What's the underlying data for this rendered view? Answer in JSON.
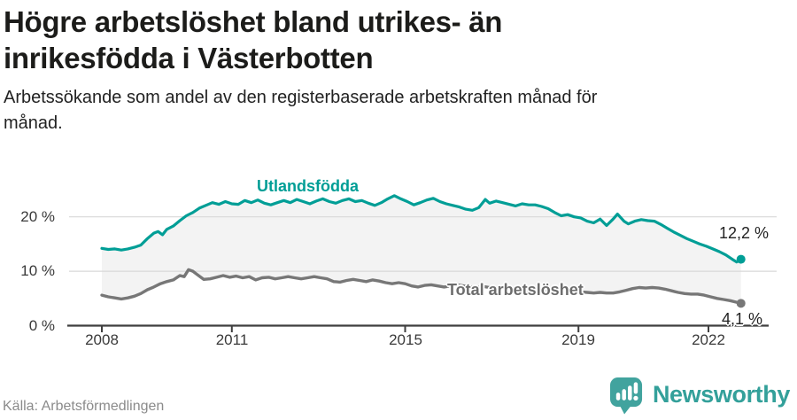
{
  "header": {
    "title": "Högre arbetslöshet bland utrikes- än inrikesfödda i Västerbotten",
    "subtitle": "Arbetssökande som andel av den registerbaserade arbetskraften månad för månad."
  },
  "chart_data": {
    "type": "line",
    "title": "Högre arbetslöshet bland utrikes- än inrikesfödda i Västerbotten",
    "subtitle": "Arbetssökande som andel av den registerbaserade arbetskraften månad för månad.",
    "unit": "%",
    "grid": "horizontal",
    "legend_position": "inline-labels",
    "x_range": [
      2008,
      2022.75
    ],
    "y_range": [
      0,
      26
    ],
    "x_ticks": [
      2008,
      2011,
      2015,
      2019,
      2022
    ],
    "x_tick_labels": [
      "2008",
      "2011",
      "2015",
      "2019",
      "2022"
    ],
    "y_ticks": [
      0,
      10,
      20
    ],
    "y_tick_labels": [
      "0 %",
      "10 %",
      "20 %"
    ],
    "band_fill": "#f3f3f3",
    "series": [
      {
        "name": "Utlandsfödda",
        "color": "#009e96",
        "end_label": "12,2 %",
        "end_value": 12.2,
        "points": [
          [
            2008.0,
            14.2
          ],
          [
            2008.15,
            14.0
          ],
          [
            2008.3,
            14.1
          ],
          [
            2008.45,
            13.9
          ],
          [
            2008.6,
            14.1
          ],
          [
            2008.75,
            14.4
          ],
          [
            2008.9,
            14.8
          ],
          [
            2009.05,
            16.0
          ],
          [
            2009.2,
            17.0
          ],
          [
            2009.3,
            17.3
          ],
          [
            2009.4,
            16.7
          ],
          [
            2009.5,
            17.7
          ],
          [
            2009.65,
            18.3
          ],
          [
            2009.8,
            19.3
          ],
          [
            2009.95,
            20.2
          ],
          [
            2010.1,
            20.8
          ],
          [
            2010.25,
            21.6
          ],
          [
            2010.4,
            22.1
          ],
          [
            2010.55,
            22.6
          ],
          [
            2010.7,
            22.3
          ],
          [
            2010.85,
            22.8
          ],
          [
            2011.0,
            22.4
          ],
          [
            2011.15,
            22.3
          ],
          [
            2011.3,
            23.0
          ],
          [
            2011.45,
            22.6
          ],
          [
            2011.6,
            23.1
          ],
          [
            2011.75,
            22.5
          ],
          [
            2011.9,
            22.2
          ],
          [
            2012.05,
            22.6
          ],
          [
            2012.2,
            23.0
          ],
          [
            2012.35,
            22.6
          ],
          [
            2012.5,
            23.2
          ],
          [
            2012.65,
            22.8
          ],
          [
            2012.8,
            22.4
          ],
          [
            2012.95,
            22.9
          ],
          [
            2013.1,
            23.3
          ],
          [
            2013.25,
            22.8
          ],
          [
            2013.4,
            22.5
          ],
          [
            2013.55,
            23.0
          ],
          [
            2013.7,
            23.3
          ],
          [
            2013.85,
            22.8
          ],
          [
            2014.0,
            23.0
          ],
          [
            2014.15,
            22.5
          ],
          [
            2014.3,
            22.1
          ],
          [
            2014.45,
            22.6
          ],
          [
            2014.6,
            23.3
          ],
          [
            2014.75,
            23.9
          ],
          [
            2014.9,
            23.3
          ],
          [
            2015.05,
            22.8
          ],
          [
            2015.2,
            22.2
          ],
          [
            2015.35,
            22.6
          ],
          [
            2015.5,
            23.1
          ],
          [
            2015.65,
            23.4
          ],
          [
            2015.8,
            22.8
          ],
          [
            2015.95,
            22.4
          ],
          [
            2016.1,
            22.1
          ],
          [
            2016.25,
            21.8
          ],
          [
            2016.4,
            21.4
          ],
          [
            2016.55,
            21.2
          ],
          [
            2016.7,
            21.7
          ],
          [
            2016.85,
            23.2
          ],
          [
            2016.95,
            22.5
          ],
          [
            2017.1,
            22.9
          ],
          [
            2017.25,
            22.6
          ],
          [
            2017.4,
            22.3
          ],
          [
            2017.55,
            22.0
          ],
          [
            2017.7,
            22.4
          ],
          [
            2017.85,
            22.2
          ],
          [
            2018.0,
            22.2
          ],
          [
            2018.15,
            21.9
          ],
          [
            2018.3,
            21.5
          ],
          [
            2018.45,
            20.8
          ],
          [
            2018.6,
            20.2
          ],
          [
            2018.75,
            20.4
          ],
          [
            2018.9,
            20.0
          ],
          [
            2019.05,
            19.8
          ],
          [
            2019.2,
            19.2
          ],
          [
            2019.35,
            18.9
          ],
          [
            2019.5,
            19.6
          ],
          [
            2019.65,
            18.4
          ],
          [
            2019.8,
            19.6
          ],
          [
            2019.9,
            20.5
          ],
          [
            2020.05,
            19.2
          ],
          [
            2020.15,
            18.7
          ],
          [
            2020.3,
            19.2
          ],
          [
            2020.45,
            19.5
          ],
          [
            2020.6,
            19.3
          ],
          [
            2020.75,
            19.2
          ],
          [
            2020.9,
            18.6
          ],
          [
            2021.05,
            17.9
          ],
          [
            2021.2,
            17.2
          ],
          [
            2021.35,
            16.6
          ],
          [
            2021.5,
            16.0
          ],
          [
            2021.65,
            15.5
          ],
          [
            2021.8,
            15.0
          ],
          [
            2021.95,
            14.6
          ],
          [
            2022.1,
            14.1
          ],
          [
            2022.25,
            13.6
          ],
          [
            2022.4,
            13.0
          ],
          [
            2022.55,
            12.2
          ],
          [
            2022.65,
            11.7
          ],
          [
            2022.75,
            12.2
          ]
        ]
      },
      {
        "name": "Total arbetslöshet",
        "color": "#777777",
        "end_label": "4,1 %",
        "end_value": 4.1,
        "points": [
          [
            2008.0,
            5.6
          ],
          [
            2008.15,
            5.3
          ],
          [
            2008.3,
            5.1
          ],
          [
            2008.45,
            4.9
          ],
          [
            2008.6,
            5.1
          ],
          [
            2008.75,
            5.4
          ],
          [
            2008.9,
            5.9
          ],
          [
            2009.05,
            6.6
          ],
          [
            2009.2,
            7.1
          ],
          [
            2009.35,
            7.7
          ],
          [
            2009.5,
            8.1
          ],
          [
            2009.65,
            8.4
          ],
          [
            2009.8,
            9.2
          ],
          [
            2009.9,
            9.0
          ],
          [
            2010.0,
            10.3
          ],
          [
            2010.1,
            10.0
          ],
          [
            2010.2,
            9.4
          ],
          [
            2010.35,
            8.5
          ],
          [
            2010.5,
            8.6
          ],
          [
            2010.65,
            8.9
          ],
          [
            2010.8,
            9.2
          ],
          [
            2010.95,
            8.9
          ],
          [
            2011.1,
            9.1
          ],
          [
            2011.25,
            8.8
          ],
          [
            2011.4,
            9.0
          ],
          [
            2011.55,
            8.4
          ],
          [
            2011.7,
            8.8
          ],
          [
            2011.85,
            8.9
          ],
          [
            2012.0,
            8.6
          ],
          [
            2012.15,
            8.8
          ],
          [
            2012.3,
            9.0
          ],
          [
            2012.45,
            8.8
          ],
          [
            2012.6,
            8.6
          ],
          [
            2012.75,
            8.8
          ],
          [
            2012.9,
            9.0
          ],
          [
            2013.05,
            8.8
          ],
          [
            2013.2,
            8.6
          ],
          [
            2013.35,
            8.1
          ],
          [
            2013.5,
            8.0
          ],
          [
            2013.65,
            8.3
          ],
          [
            2013.8,
            8.5
          ],
          [
            2013.95,
            8.3
          ],
          [
            2014.1,
            8.1
          ],
          [
            2014.25,
            8.4
          ],
          [
            2014.4,
            8.2
          ],
          [
            2014.55,
            7.9
          ],
          [
            2014.7,
            7.7
          ],
          [
            2014.85,
            7.9
          ],
          [
            2015.0,
            7.7
          ],
          [
            2015.15,
            7.3
          ],
          [
            2015.3,
            7.1
          ],
          [
            2015.45,
            7.4
          ],
          [
            2015.6,
            7.5
          ],
          [
            2015.75,
            7.3
          ],
          [
            2015.9,
            7.1
          ],
          [
            2016.05,
            7.3
          ],
          [
            2016.2,
            7.5
          ],
          [
            2016.35,
            7.3
          ],
          [
            2016.5,
            7.1
          ],
          [
            2016.65,
            7.0
          ],
          [
            2016.8,
            7.2
          ],
          [
            2016.95,
            7.0
          ],
          [
            2017.1,
            6.9
          ],
          [
            2017.25,
            7.0
          ],
          [
            2017.4,
            6.8
          ],
          [
            2017.55,
            6.7
          ],
          [
            2017.7,
            6.8
          ],
          [
            2017.85,
            6.6
          ],
          [
            2018.0,
            6.5
          ],
          [
            2018.15,
            6.6
          ],
          [
            2018.3,
            6.4
          ],
          [
            2018.45,
            6.3
          ],
          [
            2018.6,
            6.4
          ],
          [
            2018.75,
            6.2
          ],
          [
            2018.9,
            6.1
          ],
          [
            2019.05,
            6.2
          ],
          [
            2019.2,
            6.1
          ],
          [
            2019.35,
            6.0
          ],
          [
            2019.5,
            6.1
          ],
          [
            2019.65,
            6.0
          ],
          [
            2019.8,
            6.0
          ],
          [
            2019.95,
            6.2
          ],
          [
            2020.1,
            6.5
          ],
          [
            2020.25,
            6.8
          ],
          [
            2020.4,
            7.0
          ],
          [
            2020.55,
            6.9
          ],
          [
            2020.7,
            7.0
          ],
          [
            2020.85,
            6.9
          ],
          [
            2021.0,
            6.7
          ],
          [
            2021.15,
            6.4
          ],
          [
            2021.3,
            6.1
          ],
          [
            2021.45,
            5.9
          ],
          [
            2021.6,
            5.8
          ],
          [
            2021.75,
            5.8
          ],
          [
            2021.9,
            5.6
          ],
          [
            2022.05,
            5.3
          ],
          [
            2022.2,
            5.0
          ],
          [
            2022.35,
            4.8
          ],
          [
            2022.5,
            4.6
          ],
          [
            2022.65,
            4.3
          ],
          [
            2022.75,
            4.1
          ]
        ]
      }
    ]
  },
  "footer": {
    "source": "Källa: Arbetsförmedlingen",
    "brand": "Newsworthy"
  },
  "colors": {
    "accent_teal": "#009e96",
    "line_gray": "#777777",
    "band_fill": "#f3f3f3",
    "gridline": "#d8d8d8",
    "axis": "#3e3e3e",
    "text_dark": "#1c1c1a",
    "muted": "#8b8b8b",
    "logo_teal": "#41a39e"
  }
}
